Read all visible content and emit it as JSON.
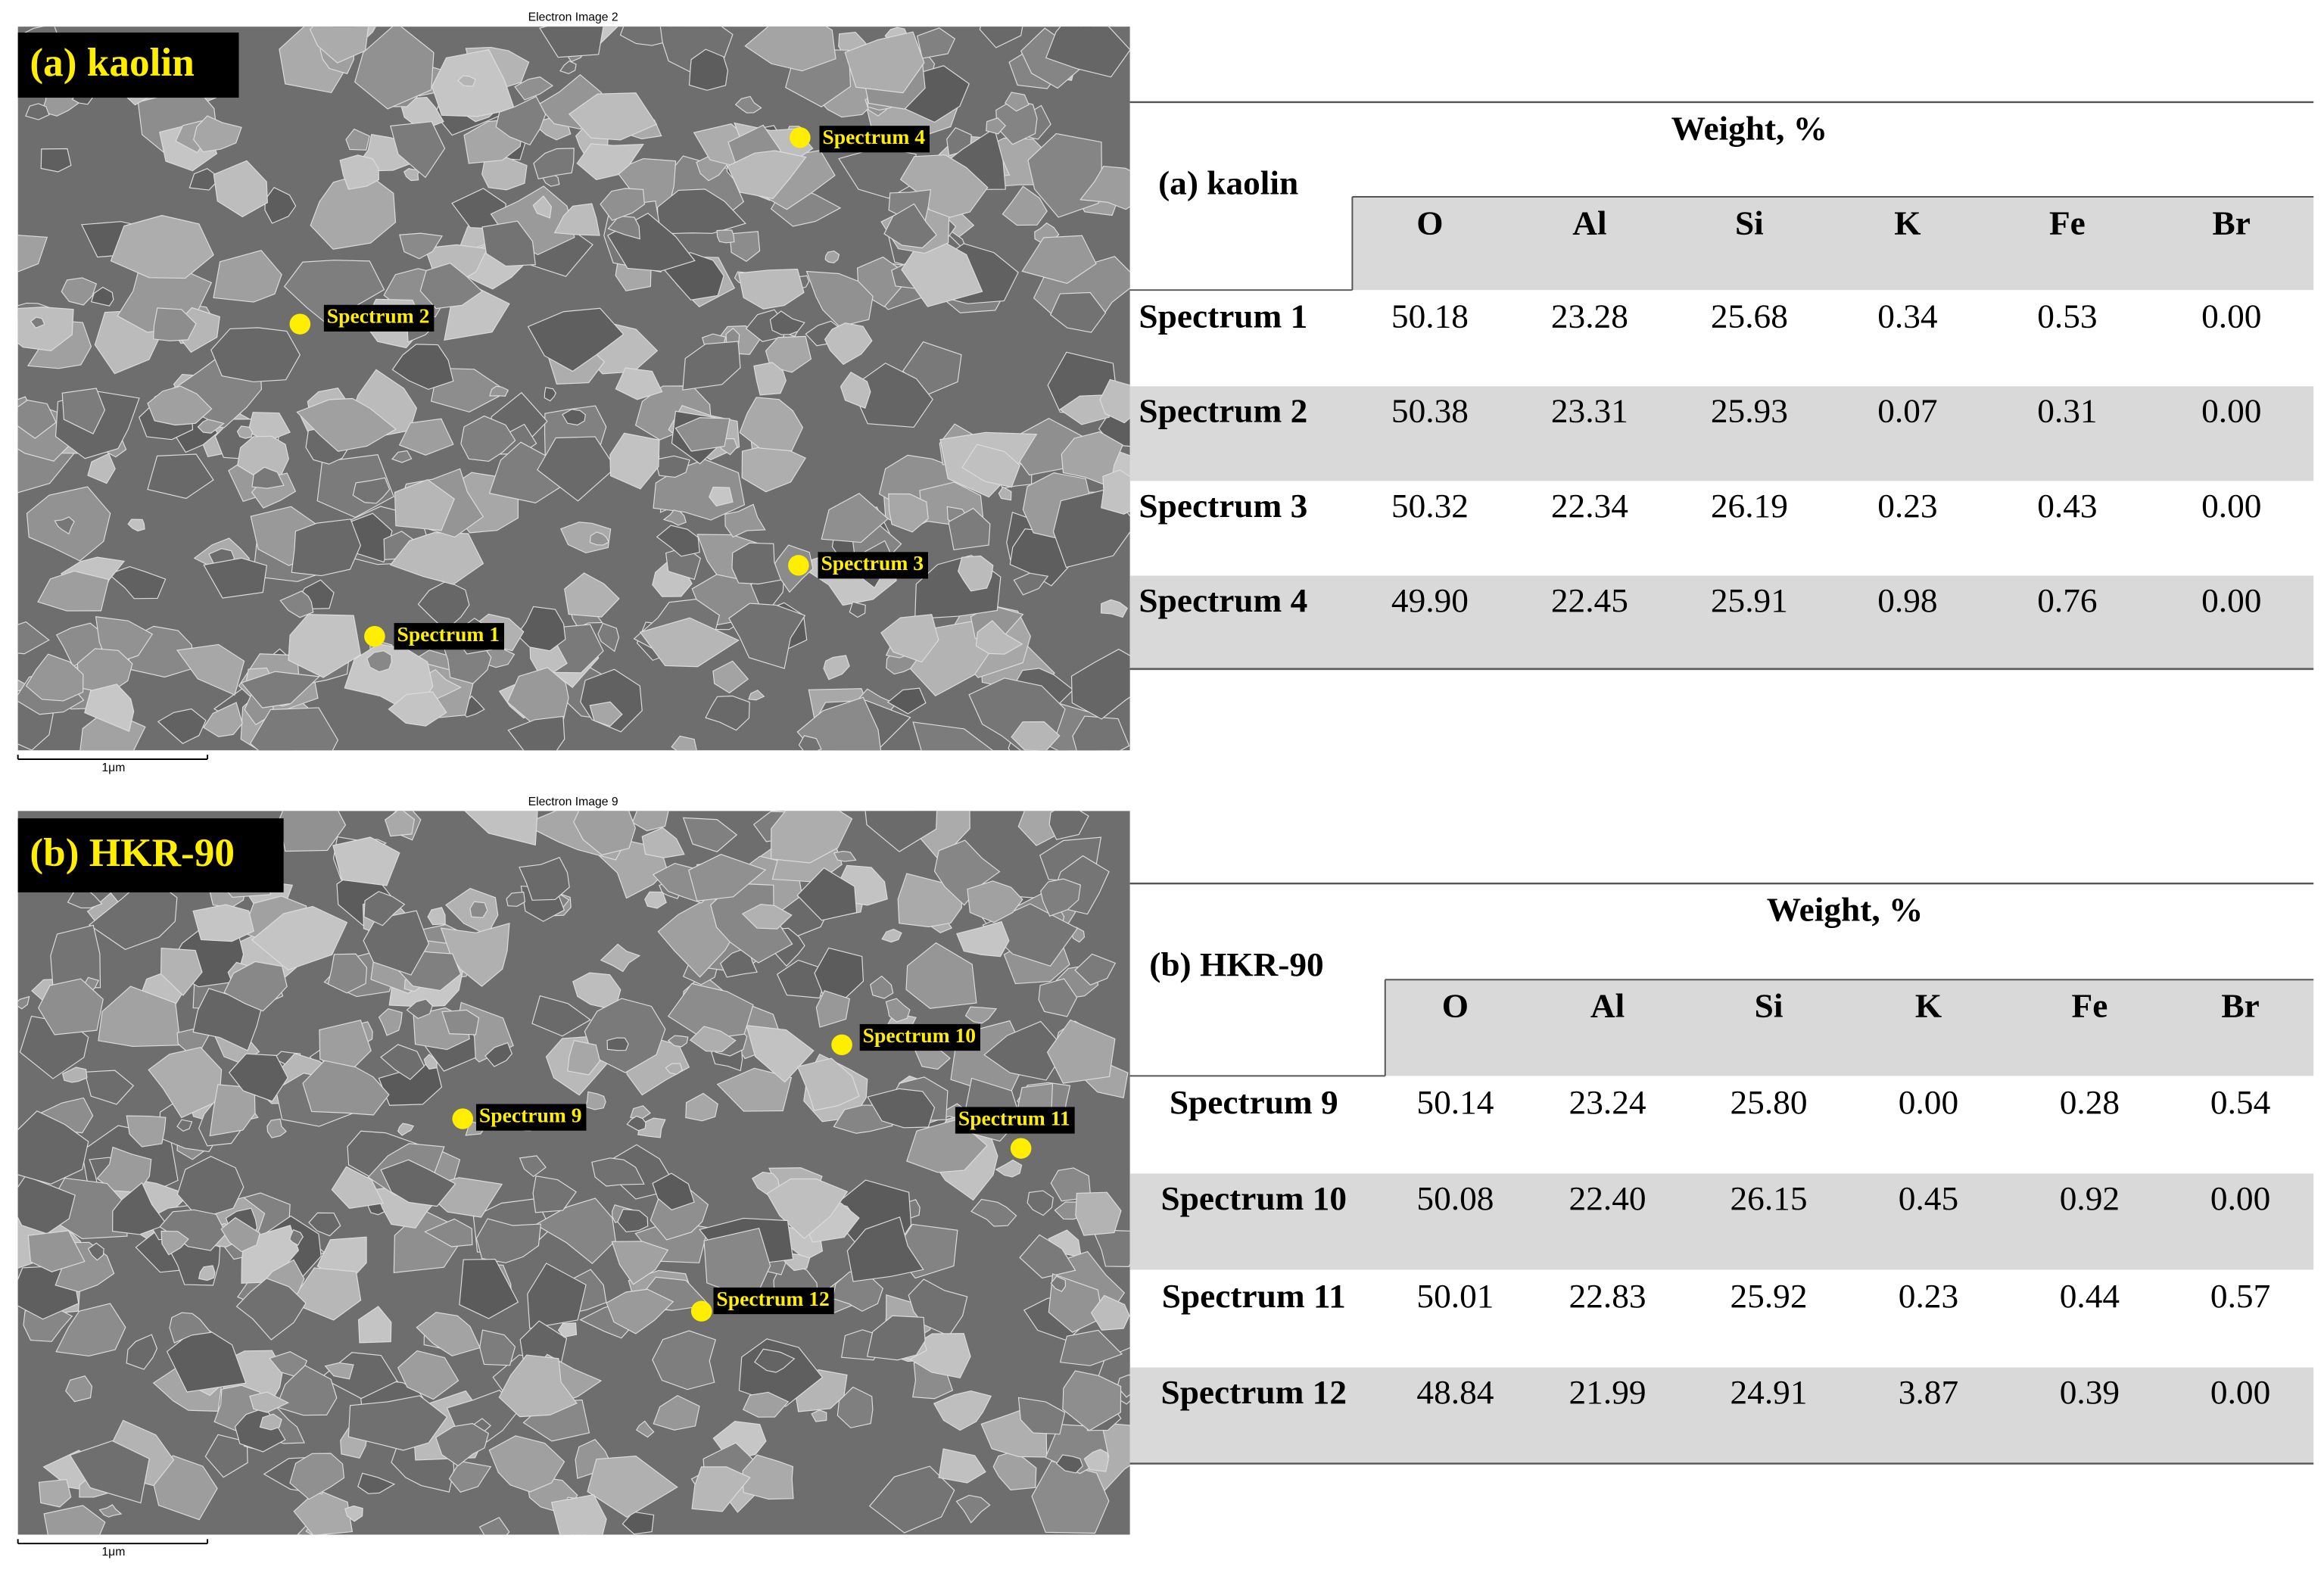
{
  "panels": [
    {
      "image_title": "Electron Image 2",
      "label": "(a) kaolin",
      "scale_bar": "1μm",
      "markers": [
        "Spectrum 1",
        "Spectrum 2",
        "Spectrum 3",
        "Spectrum 4"
      ],
      "table": {
        "group_header": "Weight,  %",
        "corner": "(a) kaolin",
        "columns": [
          "O",
          "Al",
          "Si",
          "K",
          "Fe",
          "Br"
        ],
        "rows": [
          [
            "Spectrum 1",
            "50.18",
            "23.28",
            "25.68",
            "0.34",
            "0.53",
            "0.00"
          ],
          [
            "Spectrum 2",
            "50.38",
            "23.31",
            "25.93",
            "0.07",
            "0.31",
            "0.00"
          ],
          [
            "Spectrum 3",
            "50.32",
            "22.34",
            "26.19",
            "0.23",
            "0.43",
            "0.00"
          ],
          [
            "Spectrum 4",
            "49.90",
            "22.45",
            "25.91",
            "0.98",
            "0.76",
            "0.00"
          ]
        ]
      }
    },
    {
      "image_title": "Electron Image 9",
      "label": "(b) HKR-90",
      "scale_bar": "1μm",
      "markers": [
        "Spectrum 9",
        "Spectrum 10",
        "Spectrum 11",
        "Spectrum 12"
      ],
      "table": {
        "group_header": "Weight,  %",
        "corner": "(b) HKR-90",
        "columns": [
          "O",
          "Al",
          "Si",
          "K",
          "Fe",
          "Br"
        ],
        "rows": [
          [
            "Spectrum 9",
            "50.14",
            "23.24",
            "25.80",
            "0.00",
            "0.28",
            "0.54"
          ],
          [
            "Spectrum 10",
            "50.08",
            "22.40",
            "26.15",
            "0.45",
            "0.92",
            "0.00"
          ],
          [
            "Spectrum 11",
            "50.01",
            "22.83",
            "25.92",
            "0.23",
            "0.44",
            "0.57"
          ],
          [
            "Spectrum 12",
            "48.84",
            "21.99",
            "24.91",
            "3.87",
            "0.39",
            "0.00"
          ]
        ]
      }
    }
  ]
}
